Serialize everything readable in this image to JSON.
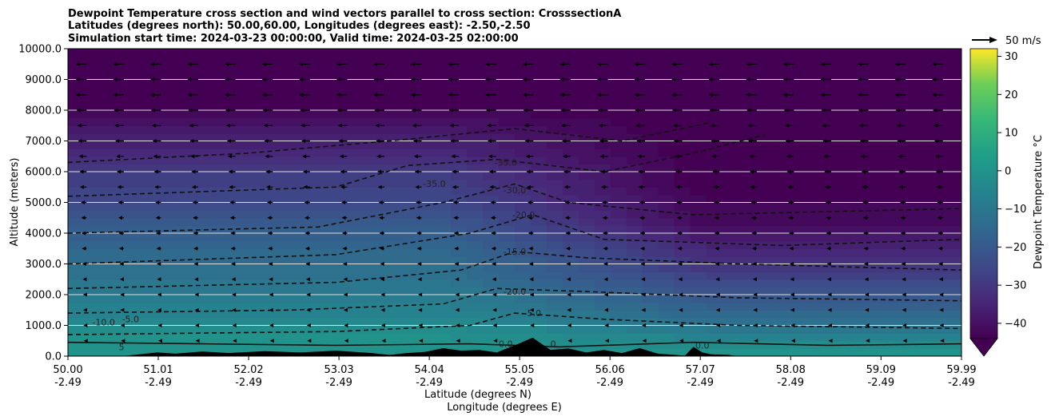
{
  "chart_data": {
    "type": "heatmap",
    "title": [
      "Dewpoint Temperature cross section and wind vectors parallel to cross section: CrosssectionA",
      "Latitudes (degrees north): 50.00,60.00, Longitudes (degrees east): -2.50,-2.50",
      "Simulation start time: 2024-03-23 00:00:00, Valid time: 2024-03-25 02:00:00"
    ],
    "ylabel": "Altitude (meters)",
    "xlabel": "Latitude (degrees N)",
    "xlabel2": "Longitude (degrees E)",
    "ylim": [
      0,
      10000
    ],
    "yticks": [
      "0.0",
      "1000.0",
      "2000.0",
      "3000.0",
      "4000.0",
      "5000.0",
      "6000.0",
      "7000.0",
      "8000.0",
      "9000.0",
      "10000.0"
    ],
    "xlim": [
      50.0,
      59.99
    ],
    "xticks": [
      {
        "lat": "50.00",
        "lon": "-2.49"
      },
      {
        "lat": "51.01",
        "lon": "-2.49"
      },
      {
        "lat": "52.02",
        "lon": "-2.49"
      },
      {
        "lat": "53.03",
        "lon": "-2.49"
      },
      {
        "lat": "54.04",
        "lon": "-2.49"
      },
      {
        "lat": "55.05",
        "lon": "-2.49"
      },
      {
        "lat": "56.06",
        "lon": "-2.49"
      },
      {
        "lat": "57.07",
        "lon": "-2.49"
      },
      {
        "lat": "58.08",
        "lon": "-2.49"
      },
      {
        "lat": "59.09",
        "lon": "-2.49"
      },
      {
        "lat": "59.99",
        "lon": "-2.49"
      }
    ],
    "colorbar": {
      "label": "Dewpoint Temperature °C",
      "ticks": [
        "−40",
        "−30",
        "−20",
        "−10",
        "0",
        "10",
        "20",
        "30"
      ],
      "range": [
        -44,
        32
      ],
      "extend": "min",
      "colormap": "viridis"
    },
    "quiver_key": "50 m/s",
    "grid": "horizontal",
    "contour_labels": [
      "0.0",
      "0",
      "0.0",
      "-5.0",
      "-5.0",
      "-10.0",
      "-15.0",
      "-20.0",
      "-20.0",
      "-30.0",
      "-35.0",
      "-35.0",
      "5"
    ],
    "dewpoint_profile": {
      "altitude_m": [
        0,
        500,
        1000,
        1500,
        2000,
        2500,
        3000,
        3500,
        4000,
        4500,
        5000,
        5500,
        6000,
        6500,
        7000,
        7500,
        8000,
        9000,
        10000
      ],
      "south_C": [
        2,
        1,
        -2,
        -5,
        -8,
        -10,
        -12,
        -14,
        -17,
        -20,
        -24,
        -26,
        -28,
        -32,
        -35,
        -38,
        -42,
        -44,
        -44
      ],
      "north_C": [
        2,
        -3,
        -10,
        -15,
        -20,
        -25,
        -30,
        -33,
        -38,
        -42,
        -42,
        -44,
        -44,
        -44,
        -44,
        -44,
        -44,
        -44,
        -44
      ]
    },
    "wind": {
      "levels_m": [
        500,
        1000,
        1500,
        2000,
        2500,
        3000,
        3500,
        4000,
        4500,
        5000,
        5500,
        6000,
        6500,
        7000,
        7500,
        8000,
        8500,
        9000,
        9500
      ],
      "parallel_speed_ms": [
        -1,
        -2,
        -3,
        -3,
        -4,
        -5,
        -6,
        -7,
        -8,
        -9,
        -11,
        -12,
        -14,
        -16,
        -18,
        -20,
        -22,
        -22,
        -22
      ]
    }
  }
}
